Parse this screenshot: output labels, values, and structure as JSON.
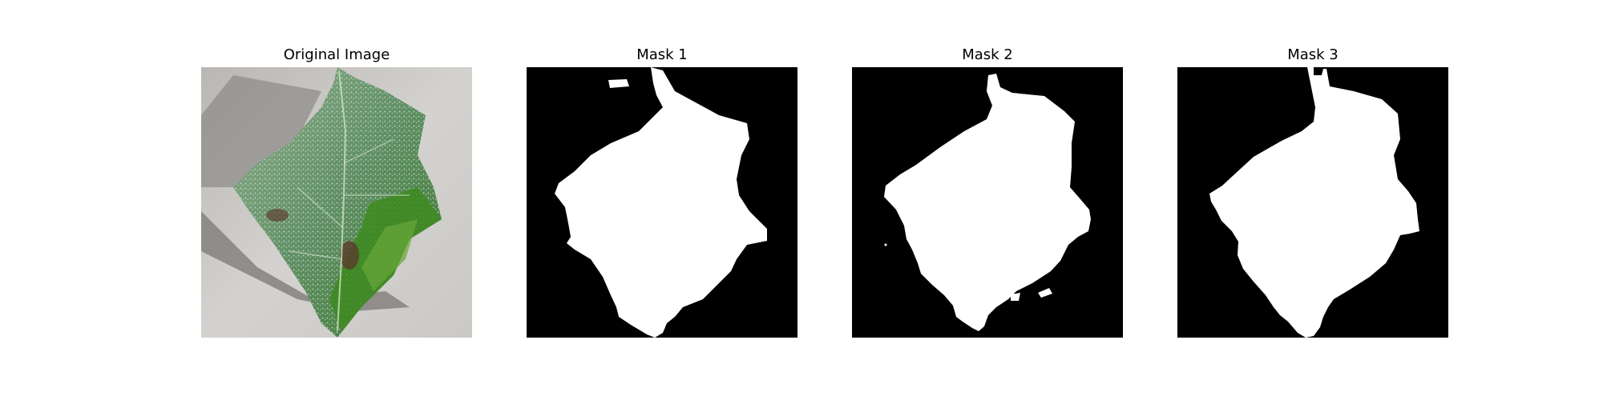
{
  "figure": {
    "panels": [
      {
        "title": "Original Image",
        "kind": "photo",
        "subject": "leaf-photo"
      },
      {
        "title": "Mask 1",
        "kind": "mask"
      },
      {
        "title": "Mask 2",
        "kind": "mask"
      },
      {
        "title": "Mask 3",
        "kind": "mask"
      }
    ],
    "colors": {
      "mask_background": "#000000",
      "mask_foreground": "#ffffff",
      "photo_background": "#cfcdcb",
      "leaf_green": "#5f8f64",
      "leaf_dark_green": "#2f6b25",
      "shadow": "#8f8d8a"
    }
  }
}
